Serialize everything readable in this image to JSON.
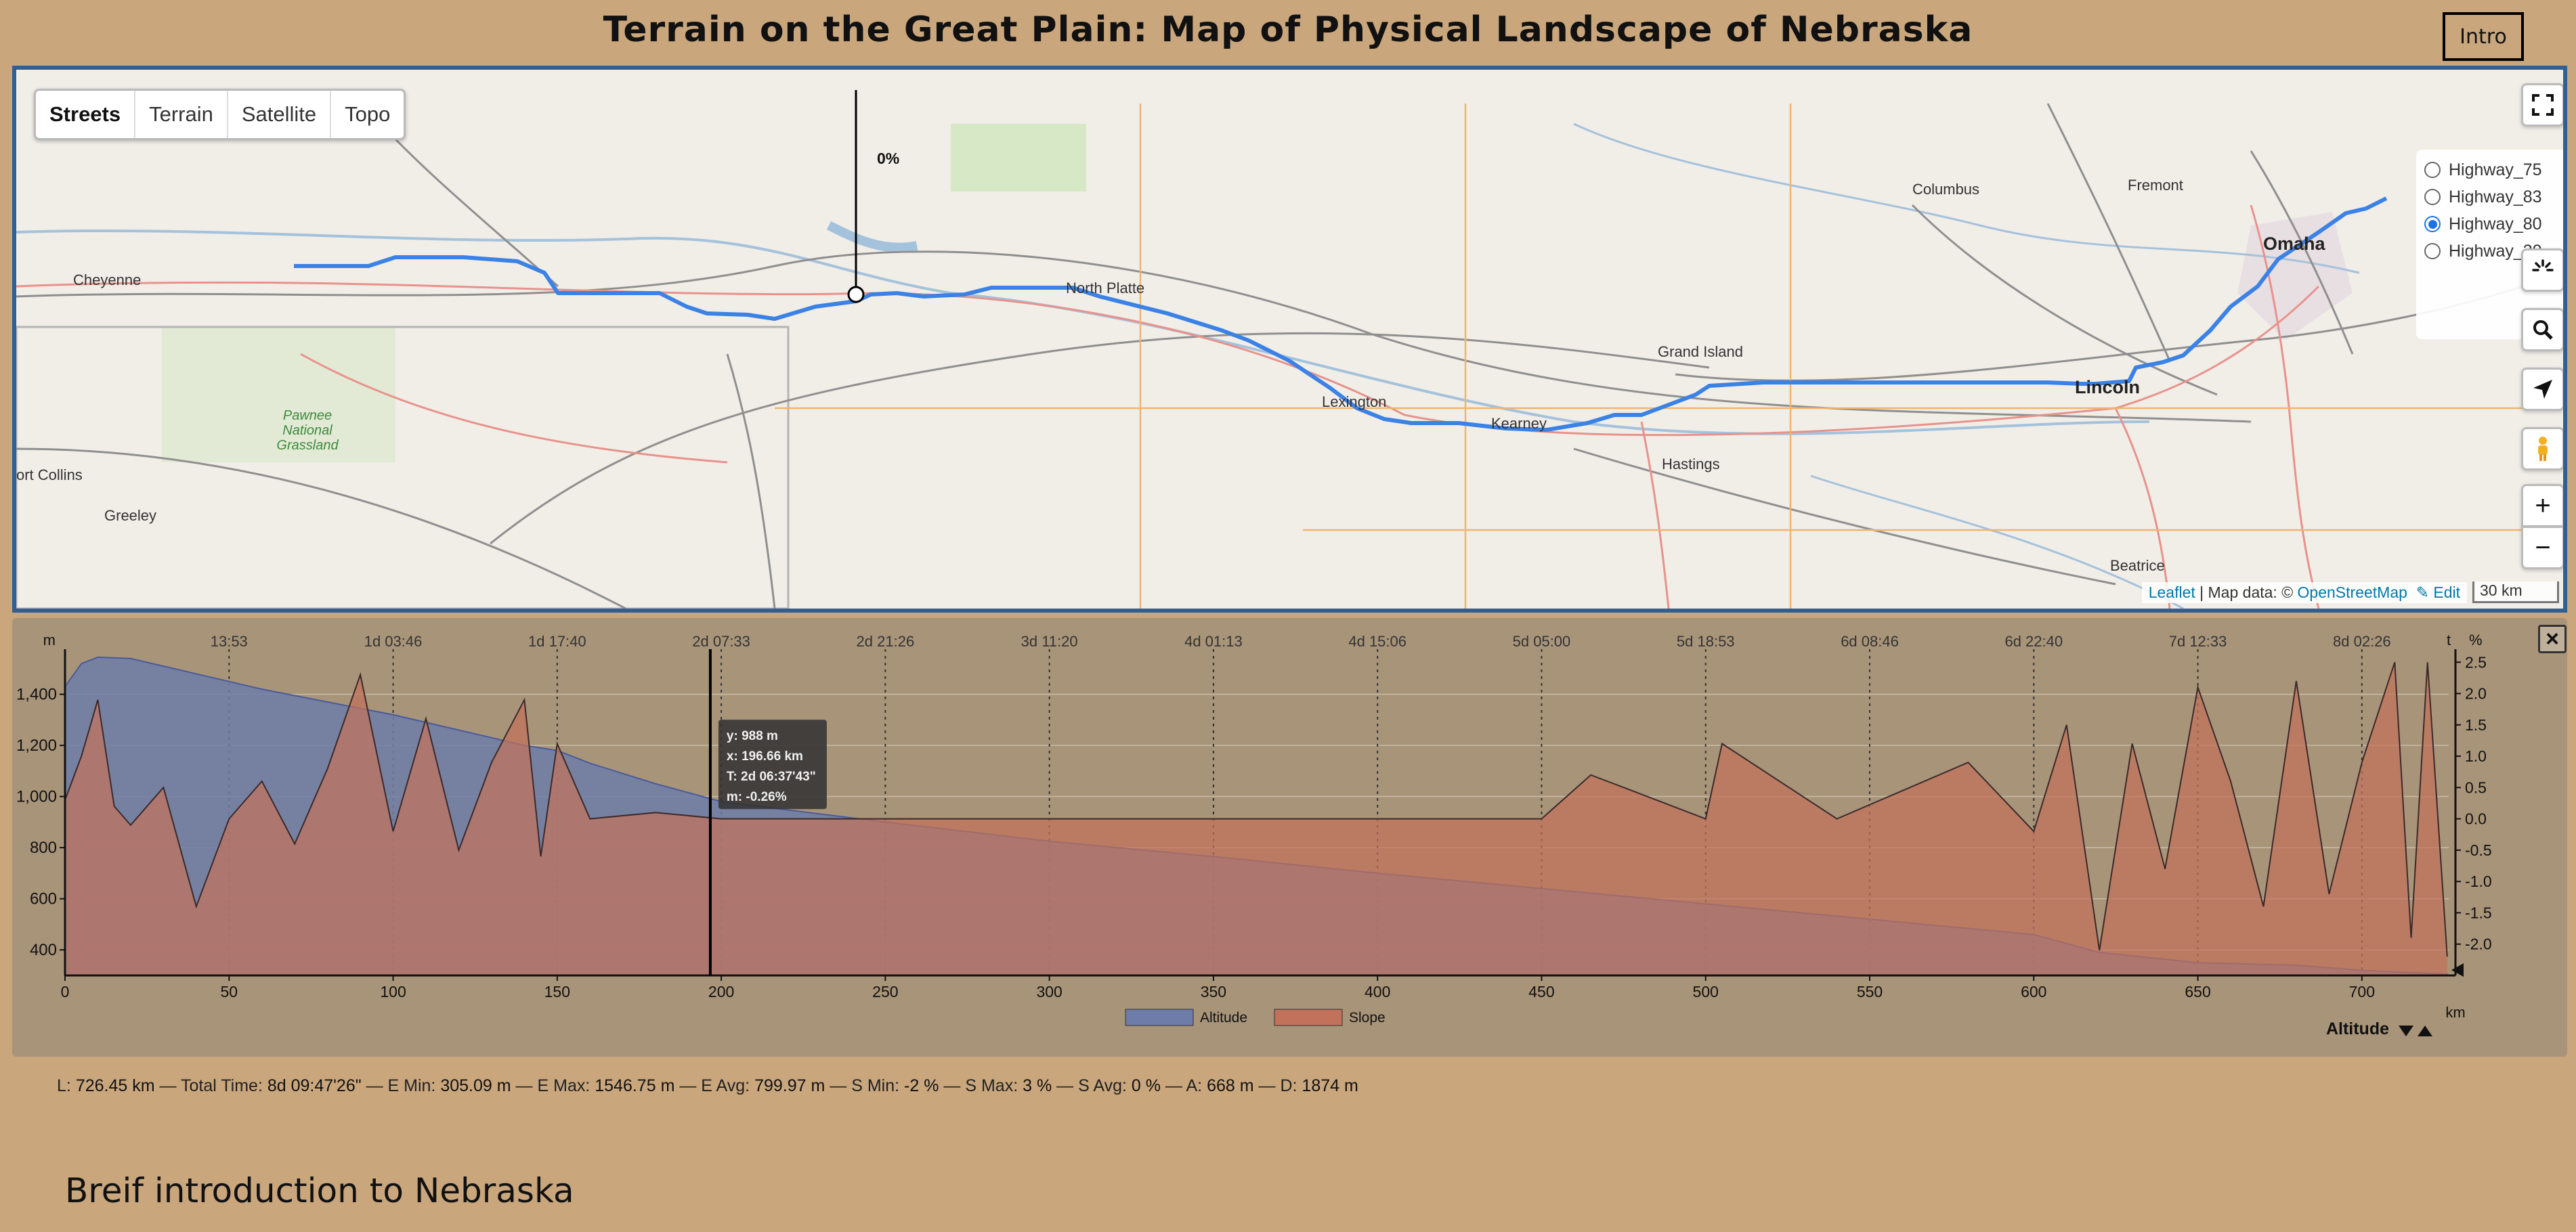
{
  "page": {
    "title": "Terrain on the Great Plain: Map of Physical Landscape of Nebraska",
    "intro_button": "Intro",
    "intro_heading": "Breif introduction to Nebraska"
  },
  "map": {
    "layers": [
      "Streets",
      "Terrain",
      "Satellite",
      "Topo"
    ],
    "active_layer": "Streets",
    "highways": [
      {
        "label": "Highway_75",
        "selected": false
      },
      {
        "label": "Highway_83",
        "selected": false
      },
      {
        "label": "Highway_80",
        "selected": true
      },
      {
        "label": "Highway_30",
        "selected": false
      }
    ],
    "cursor_label": "0%",
    "attribution": {
      "leaflet": "Leaflet",
      "separator": " | Map data: © ",
      "osm": "OpenStreetMap",
      "edit": "✎ Edit"
    },
    "scale_label": "30 km",
    "places": {
      "cheyenne": "Cheyenne",
      "columbus": "Columbus",
      "fremont": "Fremont",
      "omaha": "Omaha",
      "north_platte": "North Platte",
      "grand_island": "Grand Island",
      "lexington": "Lexington",
      "kearney": "Kearney",
      "lincoln": "Lincoln",
      "hastings": "Hastings",
      "fort_collins": "ort Collins",
      "greeley": "Greeley",
      "beatrice": "Beatrice",
      "pawnee": "Pawnee National Grassland"
    },
    "route_color": "#3b82e6",
    "icons": [
      "fullscreen-icon",
      "spinner-icon",
      "search-icon",
      "locate-icon",
      "pegman-icon",
      "zoom-in-icon",
      "zoom-out-icon"
    ]
  },
  "chart_data": {
    "type": "area",
    "title": "",
    "xlabel": "km",
    "ylabel_left": "m",
    "ylabel_right": "%",
    "xlim": [
      0,
      726.45
    ],
    "ylim_left": [
      300,
      1550
    ],
    "ylim_right": [
      -2.5,
      2.6
    ],
    "x_ticks": [
      0,
      50,
      100,
      150,
      200,
      250,
      300,
      350,
      400,
      450,
      500,
      550,
      600,
      650,
      700
    ],
    "y_ticks_left": [
      400,
      600,
      800,
      1000,
      1200,
      1400
    ],
    "y_tick_labels_left": [
      "400",
      "600",
      "800",
      "1,000",
      "1,200",
      "1,400"
    ],
    "y_ticks_right": [
      -2.0,
      -1.5,
      -1.0,
      -0.5,
      0.0,
      0.5,
      1.0,
      1.5,
      2.0,
      2.5
    ],
    "time_axis_label": "t",
    "time_ticks": [
      {
        "x": 50,
        "label": "13:53"
      },
      {
        "x": 100,
        "label": "1d 03:46"
      },
      {
        "x": 150,
        "label": "1d 17:40"
      },
      {
        "x": 200,
        "label": "2d 07:33"
      },
      {
        "x": 250,
        "label": "2d 21:26"
      },
      {
        "x": 300,
        "label": "3d 11:20"
      },
      {
        "x": 350,
        "label": "4d 01:13"
      },
      {
        "x": 400,
        "label": "4d 15:06"
      },
      {
        "x": 450,
        "label": "5d 05:00"
      },
      {
        "x": 500,
        "label": "5d 18:53"
      },
      {
        "x": 550,
        "label": "6d 08:46"
      },
      {
        "x": 600,
        "label": "6d 22:40"
      },
      {
        "x": 650,
        "label": "7d 12:33"
      },
      {
        "x": 700,
        "label": "8d 02:26"
      }
    ],
    "series": [
      {
        "name": "Altitude",
        "color": "#6d7ca8",
        "x": [
          0,
          5,
          10,
          20,
          40,
          60,
          80,
          100,
          120,
          140,
          150,
          160,
          180,
          200,
          250,
          300,
          350,
          400,
          450,
          500,
          550,
          600,
          620,
          650,
          680,
          700,
          726
        ],
        "y": [
          1430,
          1520,
          1545,
          1540,
          1480,
          1420,
          1370,
          1320,
          1260,
          1200,
          1180,
          1130,
          1050,
          980,
          900,
          825,
          765,
          700,
          640,
          580,
          520,
          460,
          390,
          350,
          340,
          320,
          305
        ]
      },
      {
        "name": "Slope",
        "color": "#c2725a",
        "x": [
          0,
          5,
          10,
          15,
          20,
          30,
          40,
          50,
          60,
          70,
          80,
          90,
          100,
          110,
          120,
          130,
          140,
          145,
          150,
          160,
          180,
          200,
          250,
          300,
          350,
          400,
          450,
          465,
          500,
          505,
          540,
          580,
          600,
          610,
          620,
          630,
          640,
          650,
          660,
          670,
          680,
          690,
          700,
          710,
          715,
          720,
          726
        ],
        "y": [
          0.3,
          1.0,
          1.9,
          0.2,
          -0.1,
          0.5,
          -1.4,
          0.0,
          0.6,
          -0.4,
          0.8,
          2.3,
          -0.2,
          1.6,
          -0.5,
          0.9,
          1.9,
          -0.6,
          1.2,
          0.0,
          0.1,
          0.0,
          0.0,
          0.0,
          0.0,
          0.0,
          0.0,
          0.7,
          0.0,
          1.2,
          0.0,
          0.9,
          -0.2,
          1.5,
          -2.1,
          1.2,
          -0.8,
          2.1,
          0.6,
          -1.4,
          2.2,
          -1.2,
          0.9,
          2.5,
          -1.9,
          2.5,
          -2.2
        ]
      }
    ],
    "legend": [
      "Altitude",
      "Slope"
    ],
    "legend_position": "bottom-center",
    "grid": true,
    "focus": {
      "x": 196.66,
      "y": 988
    },
    "tooltip": {
      "y": "y: 988 m",
      "x": "x: 196.66 km",
      "t": "T: 2d 06:37'43\"",
      "m": "m: -0.26%"
    },
    "selector_label": "Altitude"
  },
  "summary": {
    "length_label": "L:",
    "length": "726.45 km",
    "time_label": "Total Time:",
    "time": "8d 09:47'26\"",
    "emin_label": "E Min:",
    "emin": "305.09 m",
    "emax_label": "E Max:",
    "emax": "1546.75 m",
    "eavg_label": "E Avg:",
    "eavg": "799.97 m",
    "smin_label": "S Min:",
    "smin": "-2 %",
    "smax_label": "S Max:",
    "smax": "3 %",
    "savg_label": "S Avg:",
    "savg": "0 %",
    "a_label": "A:",
    "a": "668 m",
    "d_label": "D:",
    "d": "1874 m"
  }
}
